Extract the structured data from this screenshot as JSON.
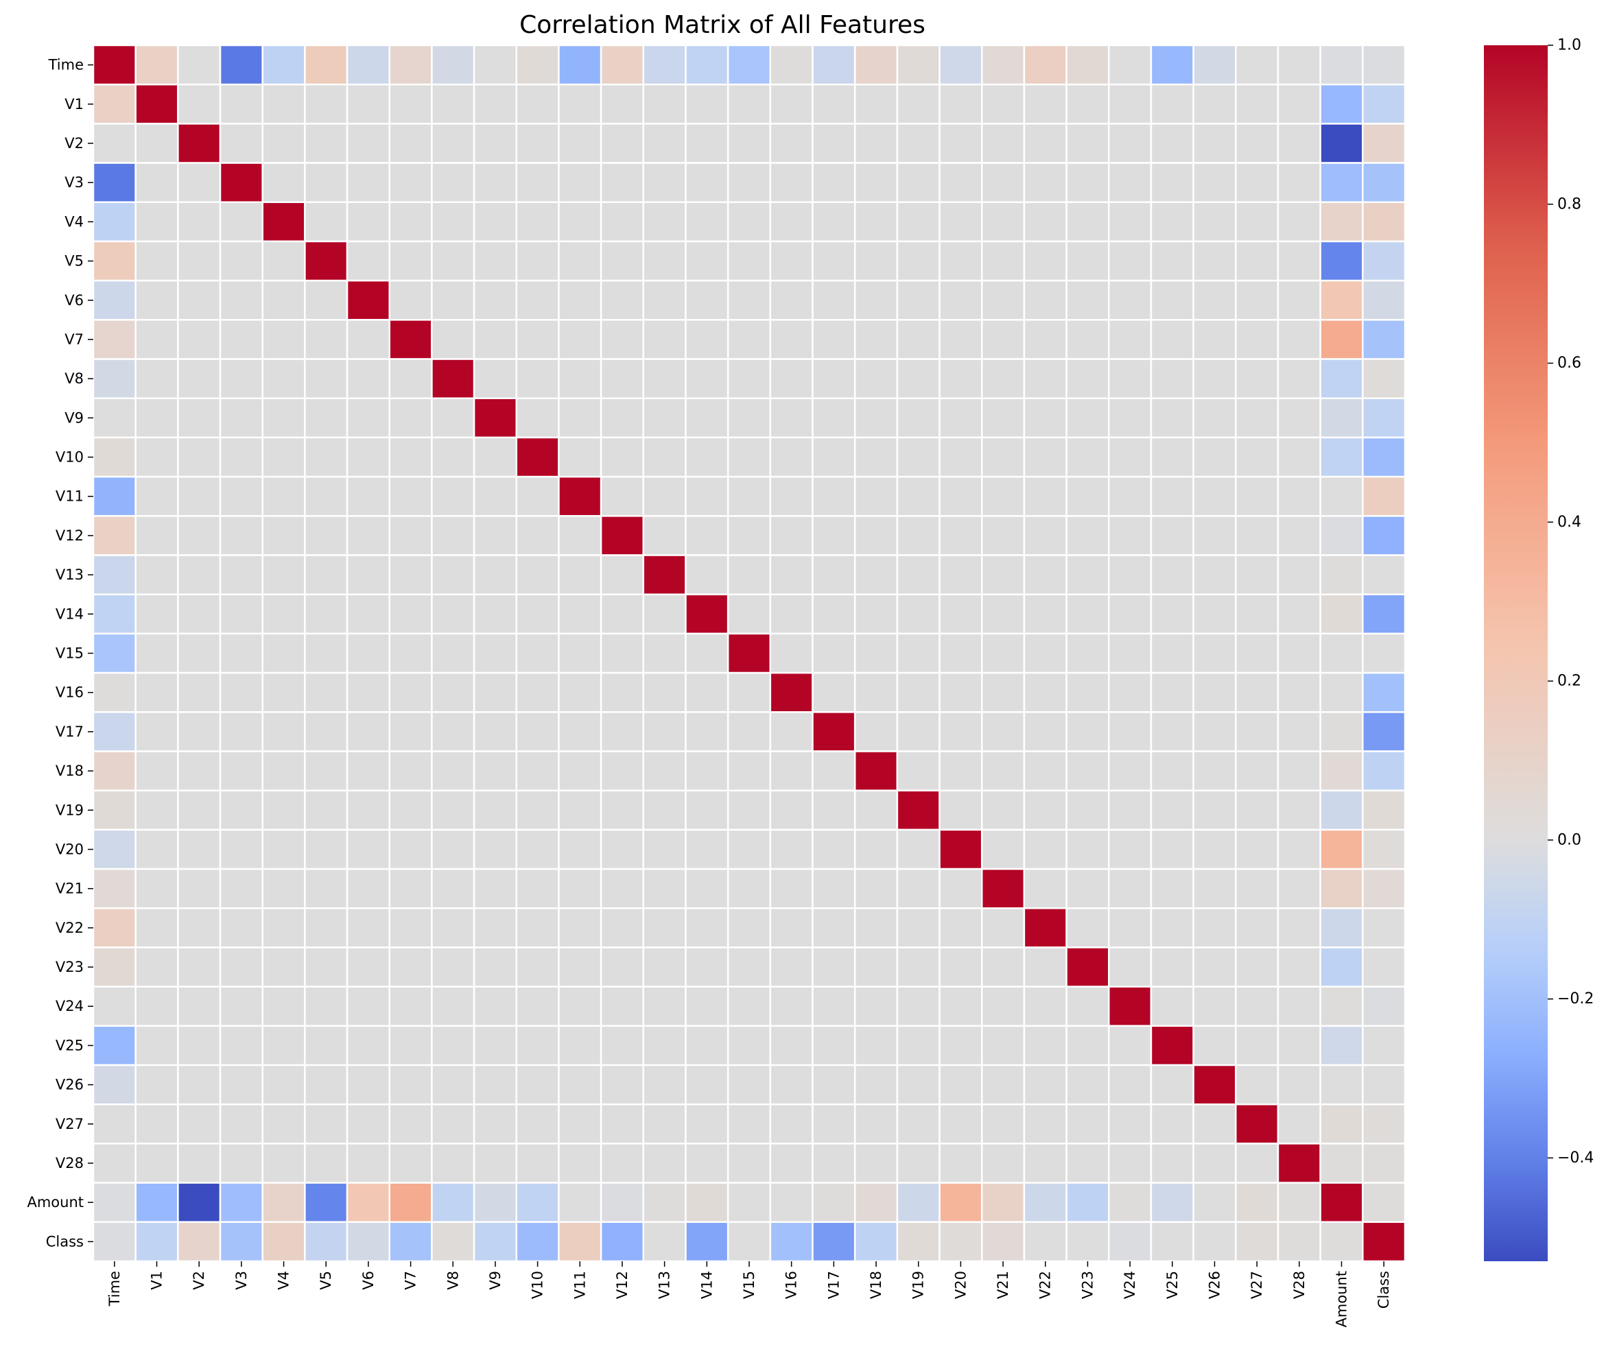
{
  "chart_data": {
    "type": "heatmap",
    "title": "Correlation Matrix of All Features",
    "labels": [
      "Time",
      "V1",
      "V2",
      "V3",
      "V4",
      "V5",
      "V6",
      "V7",
      "V8",
      "V9",
      "V10",
      "V11",
      "V12",
      "V13",
      "V14",
      "V15",
      "V16",
      "V17",
      "V18",
      "V19",
      "V20",
      "V21",
      "V22",
      "V23",
      "V24",
      "V25",
      "V26",
      "V27",
      "V28",
      "Amount",
      "Class"
    ],
    "time_correlations": [
      1.0,
      0.12,
      0.0,
      -0.42,
      -0.11,
      0.17,
      -0.06,
      0.08,
      -0.04,
      0.0,
      0.03,
      -0.25,
      0.12,
      -0.07,
      -0.1,
      -0.18,
      0.01,
      -0.07,
      0.09,
      0.03,
      -0.05,
      0.04,
      0.14,
      0.05,
      0.0,
      -0.23,
      -0.04,
      0.0,
      0.0,
      -0.01,
      -0.01
    ],
    "amount_correlations": [
      -0.01,
      -0.23,
      -0.53,
      -0.21,
      0.1,
      -0.39,
      0.22,
      0.4,
      -0.1,
      -0.04,
      -0.1,
      0.0,
      -0.01,
      0.01,
      0.03,
      -0.0,
      -0.0,
      0.01,
      0.04,
      -0.06,
      0.34,
      0.11,
      -0.06,
      -0.11,
      0.01,
      -0.05,
      -0.0,
      0.03,
      0.01,
      1.0,
      0.01
    ],
    "class_correlations": [
      -0.01,
      -0.1,
      0.09,
      -0.19,
      0.13,
      -0.09,
      -0.04,
      -0.19,
      0.02,
      -0.1,
      -0.22,
      0.15,
      -0.26,
      -0.0,
      -0.3,
      -0.0,
      -0.2,
      -0.33,
      -0.11,
      0.03,
      0.02,
      0.04,
      0.0,
      -0.0,
      -0.01,
      0.0,
      0.0,
      0.02,
      0.01,
      0.01,
      1.0
    ],
    "default_offdiagonal": 0.0,
    "diagonal": 1.0,
    "colormap": "coolwarm",
    "vmin": -0.53,
    "vmax": 1.0,
    "colorbar_ticks": [
      1.0,
      0.8,
      0.6,
      0.4,
      0.2,
      0.0,
      -0.2,
      -0.4
    ],
    "colorbar_tick_labels": [
      "1.0",
      "0.8",
      "0.6",
      "0.4",
      "0.2",
      "0.0",
      "−0.2",
      "−0.4"
    ],
    "grid": false,
    "cell_border_color": "#ffffff",
    "xlabel": "",
    "ylabel": ""
  }
}
